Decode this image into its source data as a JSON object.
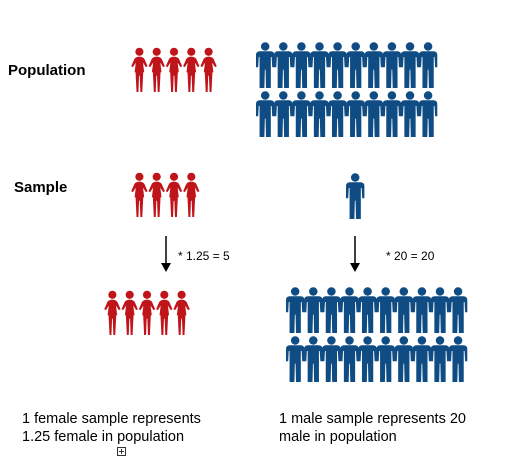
{
  "labels": {
    "population": "Population",
    "sample": "Sample"
  },
  "multipliers": {
    "female": "* 1.25 = 5",
    "male": "* 20 = 20"
  },
  "captions": {
    "female_line1": "1 female sample represents",
    "female_line2": "1.25 female in population",
    "male_line1": "1 male sample represents 20",
    "male_line2": "male in population"
  },
  "counts": {
    "population_female": 5,
    "population_male": 20,
    "sample_female": 4,
    "sample_male": 1,
    "weighted_female": 5,
    "weighted_male": 20
  },
  "colors": {
    "female": "#c0141b",
    "male": "#0f4c83",
    "arrow": "#000000"
  },
  "icons": {
    "female": "female-figure-icon",
    "male": "male-figure-icon",
    "arrow": "arrow-down-icon",
    "expand": "expand-box-icon"
  }
}
